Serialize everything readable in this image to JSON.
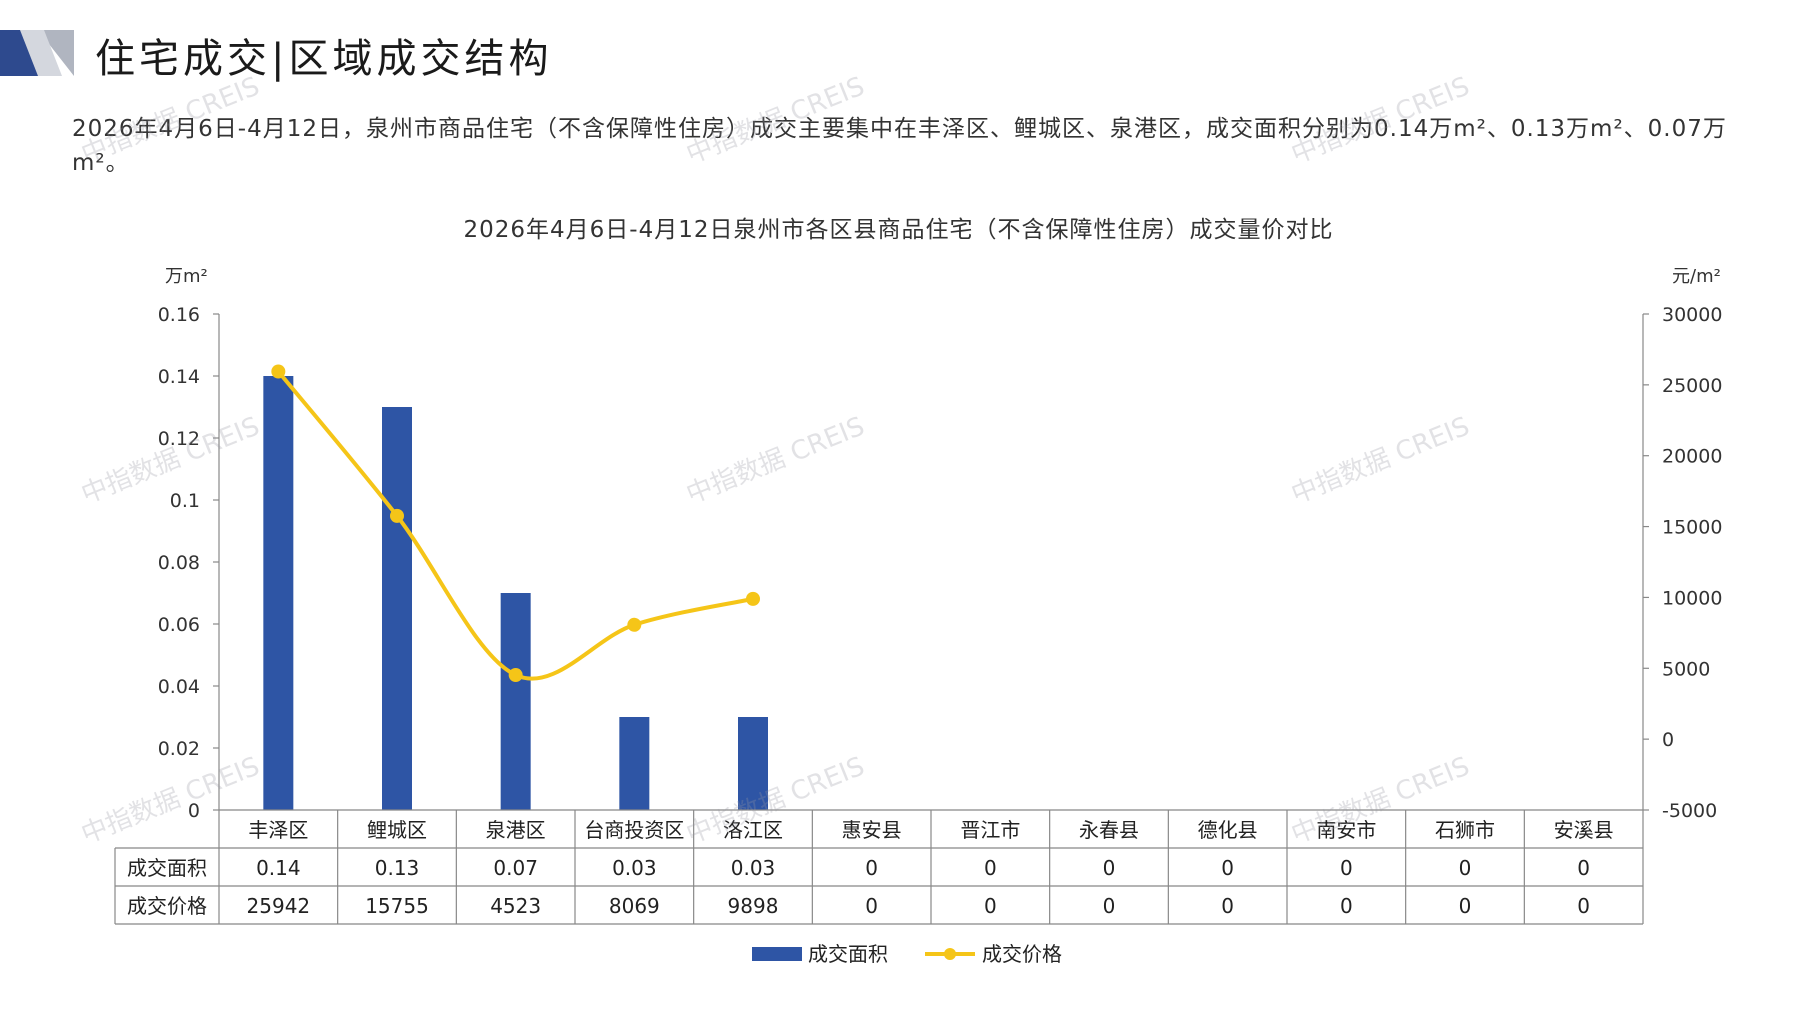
{
  "header": {
    "title": "住宅成交|区域成交结构"
  },
  "summary": "2026年4月6日-4月12日，泉州市商品住宅（不含保障性住房）成交主要集中在丰泽区、鲤城区、泉港区，成交面积分别为0.14万m²、0.13万m²、0.07万m²。",
  "watermark": "中指数据 CREIS",
  "colors": {
    "bar": "#2E55A5",
    "line": "#F5C518",
    "logo_dark": "#2E4A8E",
    "logo_light": "#B0B5C0"
  },
  "chart_data": {
    "type": "bar",
    "title": "2026年4月6日-4月12日泉州市各区县商品住宅（不含保障性住房）成交量价对比",
    "categories": [
      "丰泽区",
      "鲤城区",
      "泉港区",
      "台商投资区",
      "洛江区",
      "惠安县",
      "晋江市",
      "永春县",
      "德化县",
      "南安市",
      "石狮市",
      "安溪县"
    ],
    "y_left_label": "万m²",
    "y_right_label": "元/m²",
    "y_left_ticks": [
      "0.16",
      "0.14",
      "0.12",
      "0.1",
      "0.08",
      "0.06",
      "0.04",
      "0.02",
      "0"
    ],
    "y_right_ticks": [
      "30000",
      "25000",
      "20000",
      "15000",
      "10000",
      "5000",
      "0",
      "-5000"
    ],
    "ylim_left": [
      0,
      0.16
    ],
    "ylim_right": [
      -5000,
      30000
    ],
    "series": [
      {
        "name": "成交面积",
        "type": "bar",
        "axis": "left",
        "values": [
          0.14,
          0.13,
          0.07,
          0.03,
          0.03,
          0,
          0,
          0,
          0,
          0,
          0,
          0
        ],
        "labels": [
          "0.14",
          "0.13",
          "0.07",
          "0.03",
          "0.03",
          "0",
          "0",
          "0",
          "0",
          "0",
          "0",
          "0"
        ]
      },
      {
        "name": "成交价格",
        "type": "line",
        "axis": "right",
        "smooth": true,
        "points_count": 5,
        "values": [
          25942,
          15755,
          4523,
          8069,
          9898,
          0,
          0,
          0,
          0,
          0,
          0,
          0
        ],
        "labels": [
          "25942",
          "15755",
          "4523",
          "8069",
          "9898",
          "0",
          "0",
          "0",
          "0",
          "0",
          "0",
          "0"
        ]
      }
    ],
    "legend_position": "bottom"
  }
}
